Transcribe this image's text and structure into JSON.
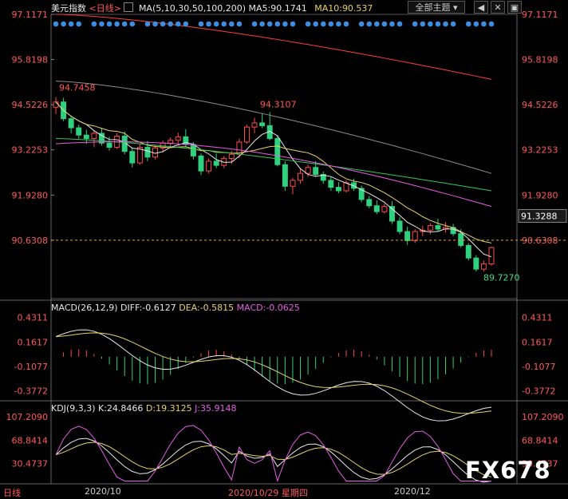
{
  "header": {
    "title": "美元指数",
    "period": "<日线>",
    "ma_label": "MA(5,10,30,50,100,200)",
    "ma5": "MA5:90.1741",
    "ma10": "MA10:90.537",
    "theme_button": "全部主题",
    "theme_arrow": "▾"
  },
  "macd_header": {
    "label": "MACD(26,12,9)",
    "diff": "DIFF:-0.6127",
    "dea": "DEA:-0.5815",
    "macd": "MACD:-0.0625"
  },
  "kdj_header": {
    "label": "KDJ(9,3,3)",
    "k": "K:24.8466",
    "d": "D:19.3125",
    "j": "J:35.9148"
  },
  "footer": {
    "left_label": "日线",
    "date1": "2020/10",
    "cursor_date": "2020/10/29 星期四",
    "date2": "2020/12"
  },
  "watermark": "FX678",
  "chart_data": {
    "type": "candlestick",
    "price_axis": [
      "97.1171",
      "95.8198",
      "94.5226",
      "93.2253",
      "91.9280",
      "90.6308"
    ],
    "last_price": "91.3288",
    "annotations": {
      "high": "94.7458",
      "mid_high": "94.3107",
      "low": "89.7270"
    },
    "macd_axis": [
      "0.4311",
      "0.1617",
      "-0.1077",
      "-0.3772"
    ],
    "kdj_axis": [
      "107.2090",
      "68.8414",
      "30.4737"
    ],
    "colors": {
      "up": "#ff4a4a",
      "down": "#2fd17e",
      "ma5": "#e8e8e8",
      "ma10": "#e6d36a",
      "ma30": "#e85ce8",
      "ma50": "#34c759",
      "ma100": "#8c8c8c",
      "ma200": "#ff3c3c"
    },
    "ylim": [
      89.0,
      97.3
    ],
    "candles": [
      [
        94.45,
        94.74,
        94.25,
        94.6
      ],
      [
        94.6,
        94.72,
        94.05,
        94.12
      ],
      [
        94.12,
        94.2,
        93.7,
        93.86
      ],
      [
        93.86,
        93.95,
        93.55,
        93.65
      ],
      [
        93.65,
        93.8,
        93.4,
        93.55
      ],
      [
        93.55,
        93.78,
        93.3,
        93.7
      ],
      [
        93.7,
        93.85,
        93.35,
        93.42
      ],
      [
        93.42,
        93.6,
        93.2,
        93.3
      ],
      [
        93.3,
        93.7,
        93.25,
        93.62
      ],
      [
        93.62,
        93.75,
        93.1,
        93.18
      ],
      [
        93.18,
        93.3,
        92.72,
        92.85
      ],
      [
        92.85,
        93.4,
        92.8,
        93.3
      ],
      [
        93.3,
        93.48,
        92.9,
        93.02
      ],
      [
        93.02,
        93.35,
        92.95,
        93.28
      ],
      [
        93.28,
        93.5,
        93.15,
        93.42
      ],
      [
        93.42,
        93.58,
        93.3,
        93.5
      ],
      [
        93.5,
        93.72,
        93.4,
        93.6
      ],
      [
        93.6,
        93.82,
        93.3,
        93.38
      ],
      [
        93.38,
        93.45,
        92.95,
        93.05
      ],
      [
        93.05,
        93.12,
        92.5,
        92.62
      ],
      [
        92.62,
        92.98,
        92.55,
        92.9
      ],
      [
        92.9,
        93.12,
        92.7,
        92.78
      ],
      [
        92.78,
        93.05,
        92.7,
        92.98
      ],
      [
        92.98,
        93.2,
        92.82,
        93.1
      ],
      [
        93.1,
        93.55,
        93.0,
        93.45
      ],
      [
        93.45,
        93.95,
        93.4,
        93.88
      ],
      [
        93.88,
        94.15,
        93.7,
        94.0
      ],
      [
        94.0,
        94.28,
        93.85,
        93.92
      ],
      [
        93.92,
        94.31,
        93.5,
        93.55
      ],
      [
        93.55,
        93.65,
        92.75,
        92.8
      ],
      [
        92.8,
        92.9,
        92.05,
        92.18
      ],
      [
        92.18,
        92.42,
        91.95,
        92.35
      ],
      [
        92.35,
        92.7,
        92.25,
        92.55
      ],
      [
        92.55,
        92.8,
        92.45,
        92.72
      ],
      [
        92.72,
        92.9,
        92.45,
        92.52
      ],
      [
        92.52,
        92.6,
        92.25,
        92.35
      ],
      [
        92.35,
        92.45,
        92.05,
        92.15
      ],
      [
        92.15,
        92.3,
        91.98,
        92.05
      ],
      [
        92.05,
        92.35,
        92.0,
        92.28
      ],
      [
        92.28,
        92.4,
        92.05,
        92.12
      ],
      [
        92.12,
        92.2,
        91.72,
        91.8
      ],
      [
        91.8,
        91.9,
        91.55,
        91.62
      ],
      [
        91.62,
        91.78,
        91.38,
        91.45
      ],
      [
        91.45,
        91.68,
        91.4,
        91.6
      ],
      [
        91.6,
        91.75,
        91.1,
        91.18
      ],
      [
        91.18,
        91.3,
        90.8,
        90.88
      ],
      [
        90.88,
        91.02,
        90.5,
        90.62
      ],
      [
        90.62,
        90.95,
        90.55,
        90.88
      ],
      [
        90.88,
        91.05,
        90.75,
        90.92
      ],
      [
        90.92,
        91.12,
        90.8,
        91.05
      ],
      [
        91.05,
        91.25,
        90.88,
        90.95
      ],
      [
        90.95,
        91.15,
        90.85,
        91.0
      ],
      [
        91.0,
        91.1,
        90.75,
        90.82
      ],
      [
        90.82,
        90.95,
        90.42,
        90.48
      ],
      [
        90.48,
        90.55,
        90.05,
        90.12
      ],
      [
        90.12,
        90.2,
        89.73,
        89.8
      ],
      [
        89.8,
        90.05,
        89.73,
        89.95
      ],
      [
        89.95,
        90.45,
        89.9,
        90.42
      ]
    ]
  }
}
